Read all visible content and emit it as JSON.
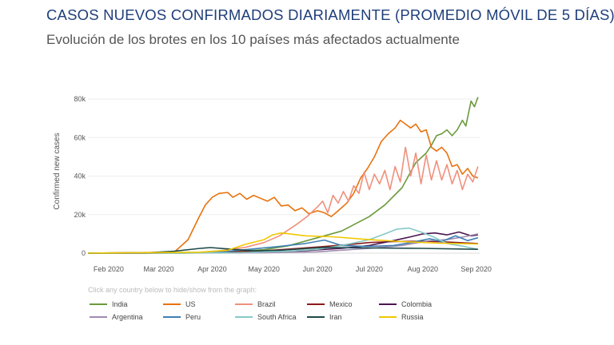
{
  "page": {
    "title": "CASOS NUEVOS CONFIRMADOS DIARIAMENTE (PROMEDIO MÓVIL DE 5 DÍAS)",
    "subtitle": "Evolución de los brotes en los 10 países más afectados actualmente"
  },
  "hint": "Click any country below to hide/show from the graph:",
  "chart_data": {
    "type": "line",
    "title": "",
    "xlabel": "",
    "ylabel": "Confirmed new cases",
    "x_type": "date",
    "xlim": [
      "2020-01-20",
      "2020-09-03"
    ],
    "ylim": [
      0,
      85000
    ],
    "x_ticks": [
      {
        "date": "2020-02-01",
        "label": "Feb 2020"
      },
      {
        "date": "2020-03-01",
        "label": "Mar 2020"
      },
      {
        "date": "2020-04-01",
        "label": "Apr 2020"
      },
      {
        "date": "2020-05-01",
        "label": "May 2020"
      },
      {
        "date": "2020-06-01",
        "label": "Jun 2020"
      },
      {
        "date": "2020-07-01",
        "label": "Jul 2020"
      },
      {
        "date": "2020-08-01",
        "label": "Aug 2020"
      },
      {
        "date": "2020-09-01",
        "label": "Sep 2020"
      }
    ],
    "y_ticks": [
      {
        "value": 0,
        "label": "0"
      },
      {
        "value": 20000,
        "label": "20k"
      },
      {
        "value": 40000,
        "label": "40k"
      },
      {
        "value": 60000,
        "label": "60k"
      },
      {
        "value": 80000,
        "label": "80k"
      }
    ],
    "grid": true,
    "legend_position": "bottom",
    "series": [
      {
        "name": "India",
        "color": "#6b9a3c",
        "points": [
          [
            "2020-01-20",
            0
          ],
          [
            "2020-03-15",
            50
          ],
          [
            "2020-04-01",
            200
          ],
          [
            "2020-04-15",
            900
          ],
          [
            "2020-05-01",
            1800
          ],
          [
            "2020-05-15",
            3800
          ],
          [
            "2020-06-01",
            8000
          ],
          [
            "2020-06-15",
            11500
          ],
          [
            "2020-07-01",
            19000
          ],
          [
            "2020-07-10",
            25000
          ],
          [
            "2020-07-20",
            34000
          ],
          [
            "2020-07-28",
            47000
          ],
          [
            "2020-08-03",
            52000
          ],
          [
            "2020-08-06",
            56000
          ],
          [
            "2020-08-09",
            61000
          ],
          [
            "2020-08-12",
            62000
          ],
          [
            "2020-08-15",
            64000
          ],
          [
            "2020-08-18",
            61000
          ],
          [
            "2020-08-21",
            64000
          ],
          [
            "2020-08-24",
            69000
          ],
          [
            "2020-08-26",
            66000
          ],
          [
            "2020-08-29",
            79000
          ],
          [
            "2020-08-31",
            76000
          ],
          [
            "2020-09-02",
            81000
          ]
        ]
      },
      {
        "name": "US",
        "color": "#e8720c",
        "points": [
          [
            "2020-01-20",
            0
          ],
          [
            "2020-03-10",
            500
          ],
          [
            "2020-03-18",
            7000
          ],
          [
            "2020-03-24",
            18000
          ],
          [
            "2020-03-28",
            25000
          ],
          [
            "2020-04-01",
            29000
          ],
          [
            "2020-04-05",
            31000
          ],
          [
            "2020-04-10",
            31500
          ],
          [
            "2020-04-13",
            29000
          ],
          [
            "2020-04-17",
            31000
          ],
          [
            "2020-04-21",
            28000
          ],
          [
            "2020-04-25",
            30000
          ],
          [
            "2020-04-29",
            28500
          ],
          [
            "2020-05-03",
            27000
          ],
          [
            "2020-05-07",
            29000
          ],
          [
            "2020-05-11",
            24500
          ],
          [
            "2020-05-15",
            25000
          ],
          [
            "2020-05-19",
            22000
          ],
          [
            "2020-05-23",
            23500
          ],
          [
            "2020-05-27",
            20500
          ],
          [
            "2020-06-01",
            22000
          ],
          [
            "2020-06-05",
            21000
          ],
          [
            "2020-06-09",
            19000
          ],
          [
            "2020-06-13",
            22000
          ],
          [
            "2020-06-18",
            26000
          ],
          [
            "2020-06-22",
            31000
          ],
          [
            "2020-06-26",
            39000
          ],
          [
            "2020-06-30",
            44000
          ],
          [
            "2020-07-04",
            50000
          ],
          [
            "2020-07-08",
            58000
          ],
          [
            "2020-07-12",
            62000
          ],
          [
            "2020-07-16",
            65000
          ],
          [
            "2020-07-19",
            69000
          ],
          [
            "2020-07-22",
            67000
          ],
          [
            "2020-07-25",
            65000
          ],
          [
            "2020-07-28",
            67000
          ],
          [
            "2020-07-31",
            63000
          ],
          [
            "2020-08-03",
            64000
          ],
          [
            "2020-08-06",
            55000
          ],
          [
            "2020-08-09",
            53000
          ],
          [
            "2020-08-12",
            55000
          ],
          [
            "2020-08-15",
            52000
          ],
          [
            "2020-08-18",
            45000
          ],
          [
            "2020-08-21",
            46000
          ],
          [
            "2020-08-24",
            41000
          ],
          [
            "2020-08-27",
            44000
          ],
          [
            "2020-08-30",
            40000
          ],
          [
            "2020-09-02",
            39000
          ]
        ]
      },
      {
        "name": "Brazil",
        "color": "#f0907c",
        "points": [
          [
            "2020-01-20",
            0
          ],
          [
            "2020-03-20",
            200
          ],
          [
            "2020-04-05",
            1200
          ],
          [
            "2020-04-20",
            3000
          ],
          [
            "2020-05-01",
            5500
          ],
          [
            "2020-05-10",
            9000
          ],
          [
            "2020-05-20",
            15000
          ],
          [
            "2020-05-26",
            19000
          ],
          [
            "2020-06-01",
            24000
          ],
          [
            "2020-06-04",
            27000
          ],
          [
            "2020-06-07",
            21000
          ],
          [
            "2020-06-10",
            30000
          ],
          [
            "2020-06-13",
            26000
          ],
          [
            "2020-06-16",
            32000
          ],
          [
            "2020-06-19",
            27000
          ],
          [
            "2020-06-22",
            35000
          ],
          [
            "2020-06-25",
            31000
          ],
          [
            "2020-06-28",
            42000
          ],
          [
            "2020-07-01",
            33000
          ],
          [
            "2020-07-04",
            41000
          ],
          [
            "2020-07-07",
            36000
          ],
          [
            "2020-07-10",
            43000
          ],
          [
            "2020-07-13",
            33000
          ],
          [
            "2020-07-16",
            45000
          ],
          [
            "2020-07-19",
            37000
          ],
          [
            "2020-07-22",
            55000
          ],
          [
            "2020-07-25",
            40000
          ],
          [
            "2020-07-28",
            52000
          ],
          [
            "2020-07-31",
            36000
          ],
          [
            "2020-08-03",
            51000
          ],
          [
            "2020-08-06",
            38000
          ],
          [
            "2020-08-09",
            48000
          ],
          [
            "2020-08-12",
            38000
          ],
          [
            "2020-08-15",
            46000
          ],
          [
            "2020-08-18",
            36000
          ],
          [
            "2020-08-21",
            43000
          ],
          [
            "2020-08-24",
            33000
          ],
          [
            "2020-08-27",
            41000
          ],
          [
            "2020-08-30",
            37000
          ],
          [
            "2020-09-02",
            45000
          ]
        ]
      },
      {
        "name": "Mexico",
        "color": "#8b1a1a",
        "points": [
          [
            "2020-01-20",
            0
          ],
          [
            "2020-04-01",
            200
          ],
          [
            "2020-05-01",
            1200
          ],
          [
            "2020-06-01",
            3200
          ],
          [
            "2020-06-20",
            4500
          ],
          [
            "2020-07-01",
            5500
          ],
          [
            "2020-07-15",
            6000
          ],
          [
            "2020-08-01",
            6200
          ],
          [
            "2020-08-15",
            5800
          ],
          [
            "2020-09-02",
            5000
          ]
        ]
      },
      {
        "name": "Colombia",
        "color": "#4b1550",
        "points": [
          [
            "2020-01-20",
            0
          ],
          [
            "2020-04-15",
            200
          ],
          [
            "2020-05-15",
            800
          ],
          [
            "2020-06-15",
            2500
          ],
          [
            "2020-07-01",
            4000
          ],
          [
            "2020-07-15",
            6500
          ],
          [
            "2020-07-25",
            8500
          ],
          [
            "2020-08-01",
            10000
          ],
          [
            "2020-08-08",
            10500
          ],
          [
            "2020-08-15",
            9500
          ],
          [
            "2020-08-22",
            11000
          ],
          [
            "2020-08-29",
            9000
          ],
          [
            "2020-09-02",
            9500
          ]
        ]
      },
      {
        "name": "Argentina",
        "color": "#a08ab0",
        "points": [
          [
            "2020-01-20",
            0
          ],
          [
            "2020-05-01",
            200
          ],
          [
            "2020-06-01",
            700
          ],
          [
            "2020-07-01",
            2500
          ],
          [
            "2020-07-20",
            4000
          ],
          [
            "2020-08-05",
            6500
          ],
          [
            "2020-08-15",
            7000
          ],
          [
            "2020-08-25",
            8500
          ],
          [
            "2020-09-02",
            10000
          ]
        ]
      },
      {
        "name": "Peru",
        "color": "#3f7fb3",
        "points": [
          [
            "2020-01-20",
            0
          ],
          [
            "2020-04-01",
            300
          ],
          [
            "2020-04-20",
            1800
          ],
          [
            "2020-05-10",
            3500
          ],
          [
            "2020-05-25",
            5000
          ],
          [
            "2020-06-05",
            6800
          ],
          [
            "2020-06-15",
            4000
          ],
          [
            "2020-06-30",
            3500
          ],
          [
            "2020-07-15",
            4000
          ],
          [
            "2020-07-25",
            5500
          ],
          [
            "2020-08-05",
            7500
          ],
          [
            "2020-08-12",
            6000
          ],
          [
            "2020-08-20",
            9000
          ],
          [
            "2020-08-27",
            6500
          ],
          [
            "2020-09-02",
            8000
          ]
        ]
      },
      {
        "name": "South Africa",
        "color": "#86c9c6",
        "points": [
          [
            "2020-01-20",
            0
          ],
          [
            "2020-04-15",
            200
          ],
          [
            "2020-05-15",
            1000
          ],
          [
            "2020-06-01",
            2000
          ],
          [
            "2020-06-15",
            4000
          ],
          [
            "2020-07-01",
            7000
          ],
          [
            "2020-07-10",
            10000
          ],
          [
            "2020-07-17",
            12500
          ],
          [
            "2020-07-24",
            13000
          ],
          [
            "2020-07-31",
            11000
          ],
          [
            "2020-08-07",
            8500
          ],
          [
            "2020-08-15",
            5000
          ],
          [
            "2020-08-25",
            3500
          ],
          [
            "2020-09-02",
            2000
          ]
        ]
      },
      {
        "name": "Iran",
        "color": "#1f4a4a",
        "points": [
          [
            "2020-01-20",
            0
          ],
          [
            "2020-02-25",
            300
          ],
          [
            "2020-03-10",
            1000
          ],
          [
            "2020-03-25",
            2500
          ],
          [
            "2020-03-31",
            2900
          ],
          [
            "2020-04-10",
            2200
          ],
          [
            "2020-04-25",
            1200
          ],
          [
            "2020-05-10",
            1500
          ],
          [
            "2020-06-05",
            3000
          ],
          [
            "2020-07-01",
            2700
          ],
          [
            "2020-08-01",
            2500
          ],
          [
            "2020-09-02",
            2000
          ]
        ]
      },
      {
        "name": "Russia",
        "color": "#f0c800",
        "points": [
          [
            "2020-01-20",
            0
          ],
          [
            "2020-03-25",
            500
          ],
          [
            "2020-04-10",
            1500
          ],
          [
            "2020-04-20",
            4500
          ],
          [
            "2020-05-01",
            7000
          ],
          [
            "2020-05-06",
            9500
          ],
          [
            "2020-05-11",
            10500
          ],
          [
            "2020-05-16",
            10000
          ],
          [
            "2020-05-25",
            9000
          ],
          [
            "2020-06-10",
            8500
          ],
          [
            "2020-07-01",
            7000
          ],
          [
            "2020-07-20",
            6000
          ],
          [
            "2020-08-10",
            5200
          ],
          [
            "2020-09-02",
            4800
          ]
        ]
      }
    ]
  }
}
